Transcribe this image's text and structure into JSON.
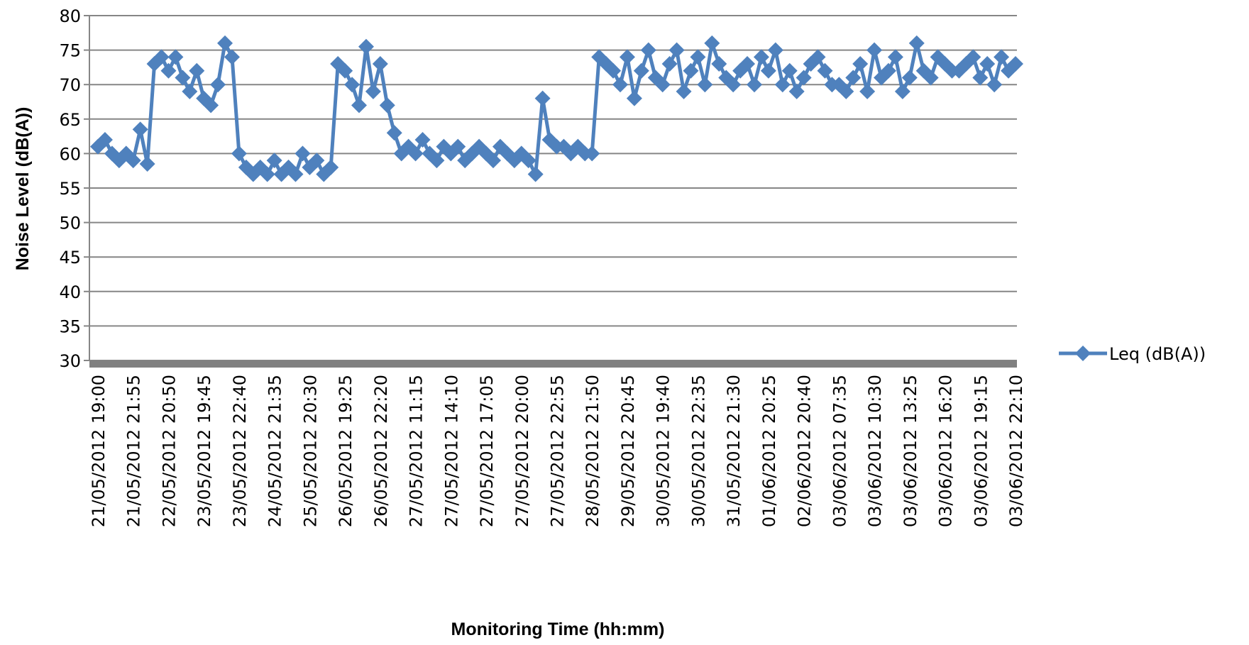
{
  "chart_data": {
    "type": "line",
    "xlabel": "Monitoring Time (hh:mm)",
    "ylabel": "Noise Level (dB(A))",
    "categories": [
      "21/05/2012 19:00",
      null,
      null,
      null,
      null,
      "21/05/2012 21:55",
      null,
      null,
      null,
      null,
      "22/05/2012 20:50",
      null,
      null,
      null,
      null,
      "23/05/2012 19:45",
      null,
      null,
      null,
      null,
      "23/05/2012 22:40",
      null,
      null,
      null,
      null,
      "24/05/2012 21:35",
      null,
      null,
      null,
      null,
      "25/05/2012 20:30",
      null,
      null,
      null,
      null,
      "26/05/2012 19:25",
      null,
      null,
      null,
      null,
      "26/05/2012 22:20",
      null,
      null,
      null,
      null,
      "27/05/2012 11:15",
      null,
      null,
      null,
      null,
      "27/05/2012 14:10",
      null,
      null,
      null,
      null,
      "27/05/2012 17:05",
      null,
      null,
      null,
      null,
      "27/05/2012 20:00",
      null,
      null,
      null,
      null,
      "27/05/2012 22:55",
      null,
      null,
      null,
      null,
      "28/05/2012 21:50",
      null,
      null,
      null,
      null,
      "29/05/2012 20:45",
      null,
      null,
      null,
      null,
      "30/05/2012 19:40",
      null,
      null,
      null,
      null,
      "30/05/2012 22:35",
      null,
      null,
      null,
      null,
      "31/05/2012 21:30",
      null,
      null,
      null,
      null,
      "01/06/2012 20:25",
      null,
      null,
      null,
      null,
      "02/06/2012 20:40",
      null,
      null,
      null,
      null,
      "03/06/2012 07:35",
      null,
      null,
      null,
      null,
      "03/06/2012 10:30",
      null,
      null,
      null,
      null,
      "03/06/2012 13:25",
      null,
      null,
      null,
      null,
      "03/06/2012 16:20",
      null,
      null,
      null,
      null,
      "03/06/2012 19:15",
      null,
      null,
      null,
      null,
      "03/06/2012 22:10"
    ],
    "series": [
      {
        "name": "Leq (dB(A))",
        "color": "#4f81bd",
        "values": [
          61,
          62,
          60,
          59,
          60,
          59,
          63.5,
          58.5,
          73,
          74,
          72,
          74,
          71,
          69,
          72,
          68,
          67,
          70,
          76,
          74,
          60,
          58,
          57,
          58,
          57,
          59,
          57,
          58,
          57,
          60,
          58,
          59,
          57,
          58,
          73,
          72,
          70,
          67,
          75.5,
          69,
          73,
          67,
          63,
          60,
          61,
          60,
          62,
          60,
          59,
          61,
          60,
          61,
          59,
          60,
          61,
          60,
          59,
          61,
          60,
          59,
          60,
          59,
          57,
          68,
          62,
          61,
          61,
          60,
          61,
          60,
          60,
          74,
          73,
          72,
          70,
          74,
          68,
          72,
          75,
          71,
          70,
          73,
          75,
          69,
          72,
          74,
          70,
          76,
          73,
          71,
          70,
          72,
          73,
          70,
          74,
          72,
          75,
          70,
          72,
          69,
          71,
          73,
          74,
          72,
          70,
          70,
          69,
          71,
          73,
          69,
          75,
          71,
          72,
          74,
          69,
          71,
          76,
          72,
          71,
          74,
          73,
          72,
          72,
          73,
          74,
          71,
          73,
          70,
          74,
          72,
          73
        ]
      }
    ],
    "ylim": [
      30,
      80
    ],
    "yticks": [
      30,
      35,
      40,
      45,
      50,
      55,
      60,
      65,
      70,
      75,
      80
    ],
    "grid": true,
    "legend": "right"
  }
}
